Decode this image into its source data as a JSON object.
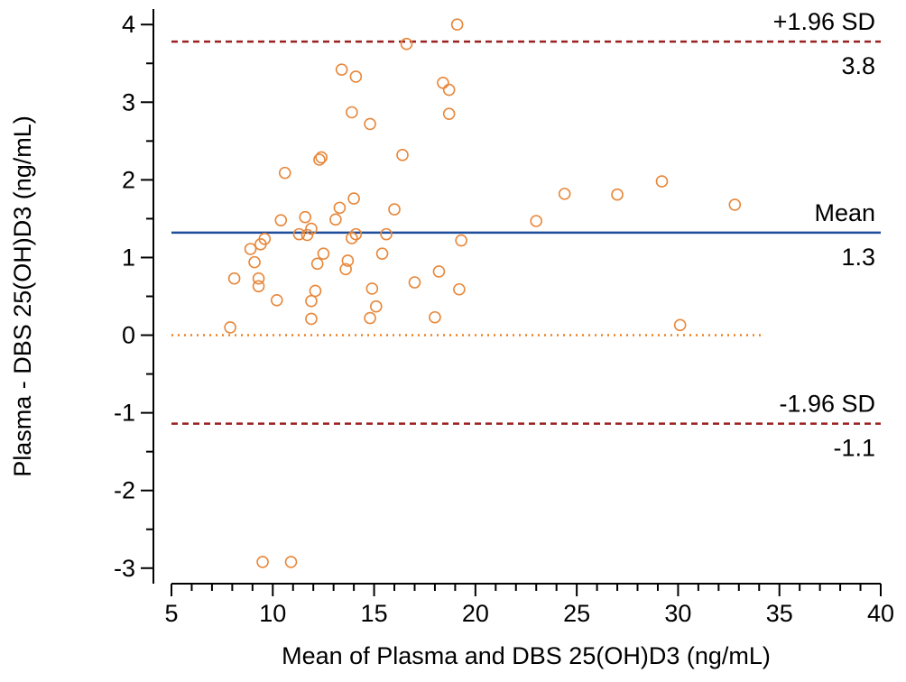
{
  "chart_data": {
    "type": "scatter",
    "xlabel": "Mean of Plasma and DBS 25(OH)D3  (ng/mL)",
    "ylabel": "Plasma - DBS 25(OH)D3  (ng/mL)",
    "xlim": [
      5,
      40
    ],
    "ylim": [
      -3.2,
      4.2
    ],
    "x_ticks": [
      "5",
      "10",
      "15",
      "20",
      "25",
      "30",
      "35",
      "40"
    ],
    "y_ticks": [
      "-3",
      "-2",
      "-1",
      "0",
      "1",
      "2",
      "3",
      "4"
    ],
    "x_minor_step": 1,
    "y_minor_step": 0.5,
    "grid": false,
    "marker": "open-circle",
    "marker_color": "#e8873a",
    "reference_lines": [
      {
        "name": "+1.96 SD",
        "label": "+1.96 SD",
        "value_label": "3.8",
        "y": 3.78,
        "style": "dashed",
        "color": "#9a1f1f"
      },
      {
        "name": "Mean",
        "label": "Mean",
        "value_label": "1.3",
        "y": 1.32,
        "style": "solid",
        "color": "#1f4e9a"
      },
      {
        "name": "-1.96 SD",
        "label": "-1.96 SD",
        "value_label": "-1.1",
        "y": -1.14,
        "style": "dashed",
        "color": "#9a1f1f"
      }
    ],
    "zero_line": {
      "y": 0,
      "x_start": 5,
      "x_end": 34.3,
      "style": "dotted",
      "color": "#f08020"
    },
    "points": [
      [
        19.1,
        4.0
      ],
      [
        16.6,
        3.75
      ],
      [
        13.4,
        3.42
      ],
      [
        14.1,
        3.33
      ],
      [
        18.4,
        3.25
      ],
      [
        18.7,
        3.16
      ],
      [
        13.9,
        2.87
      ],
      [
        18.7,
        2.85
      ],
      [
        14.8,
        2.72
      ],
      [
        16.4,
        2.32
      ],
      [
        12.4,
        2.29
      ],
      [
        12.3,
        2.26
      ],
      [
        10.6,
        2.09
      ],
      [
        24.4,
        1.82
      ],
      [
        27.0,
        1.81
      ],
      [
        29.2,
        1.98
      ],
      [
        32.8,
        1.68
      ],
      [
        14.0,
        1.76
      ],
      [
        13.3,
        1.64
      ],
      [
        16.0,
        1.62
      ],
      [
        11.6,
        1.52
      ],
      [
        10.4,
        1.48
      ],
      [
        13.1,
        1.49
      ],
      [
        23.0,
        1.47
      ],
      [
        11.9,
        1.37
      ],
      [
        11.3,
        1.3
      ],
      [
        11.7,
        1.29
      ],
      [
        14.1,
        1.3
      ],
      [
        15.6,
        1.3
      ],
      [
        13.9,
        1.25
      ],
      [
        9.6,
        1.24
      ],
      [
        19.3,
        1.22
      ],
      [
        9.4,
        1.17
      ],
      [
        8.9,
        1.11
      ],
      [
        12.5,
        1.05
      ],
      [
        15.4,
        1.05
      ],
      [
        13.7,
        0.96
      ],
      [
        9.1,
        0.94
      ],
      [
        12.2,
        0.92
      ],
      [
        13.6,
        0.85
      ],
      [
        18.2,
        0.82
      ],
      [
        8.1,
        0.73
      ],
      [
        9.3,
        0.73
      ],
      [
        17.0,
        0.68
      ],
      [
        9.3,
        0.63
      ],
      [
        14.9,
        0.6
      ],
      [
        19.2,
        0.59
      ],
      [
        12.1,
        0.57
      ],
      [
        10.2,
        0.45
      ],
      [
        11.9,
        0.44
      ],
      [
        15.1,
        0.37
      ],
      [
        18.0,
        0.23
      ],
      [
        14.8,
        0.22
      ],
      [
        11.9,
        0.21
      ],
      [
        7.9,
        0.1
      ],
      [
        30.1,
        0.13
      ],
      [
        9.5,
        -2.92
      ],
      [
        10.9,
        -2.92
      ]
    ]
  }
}
